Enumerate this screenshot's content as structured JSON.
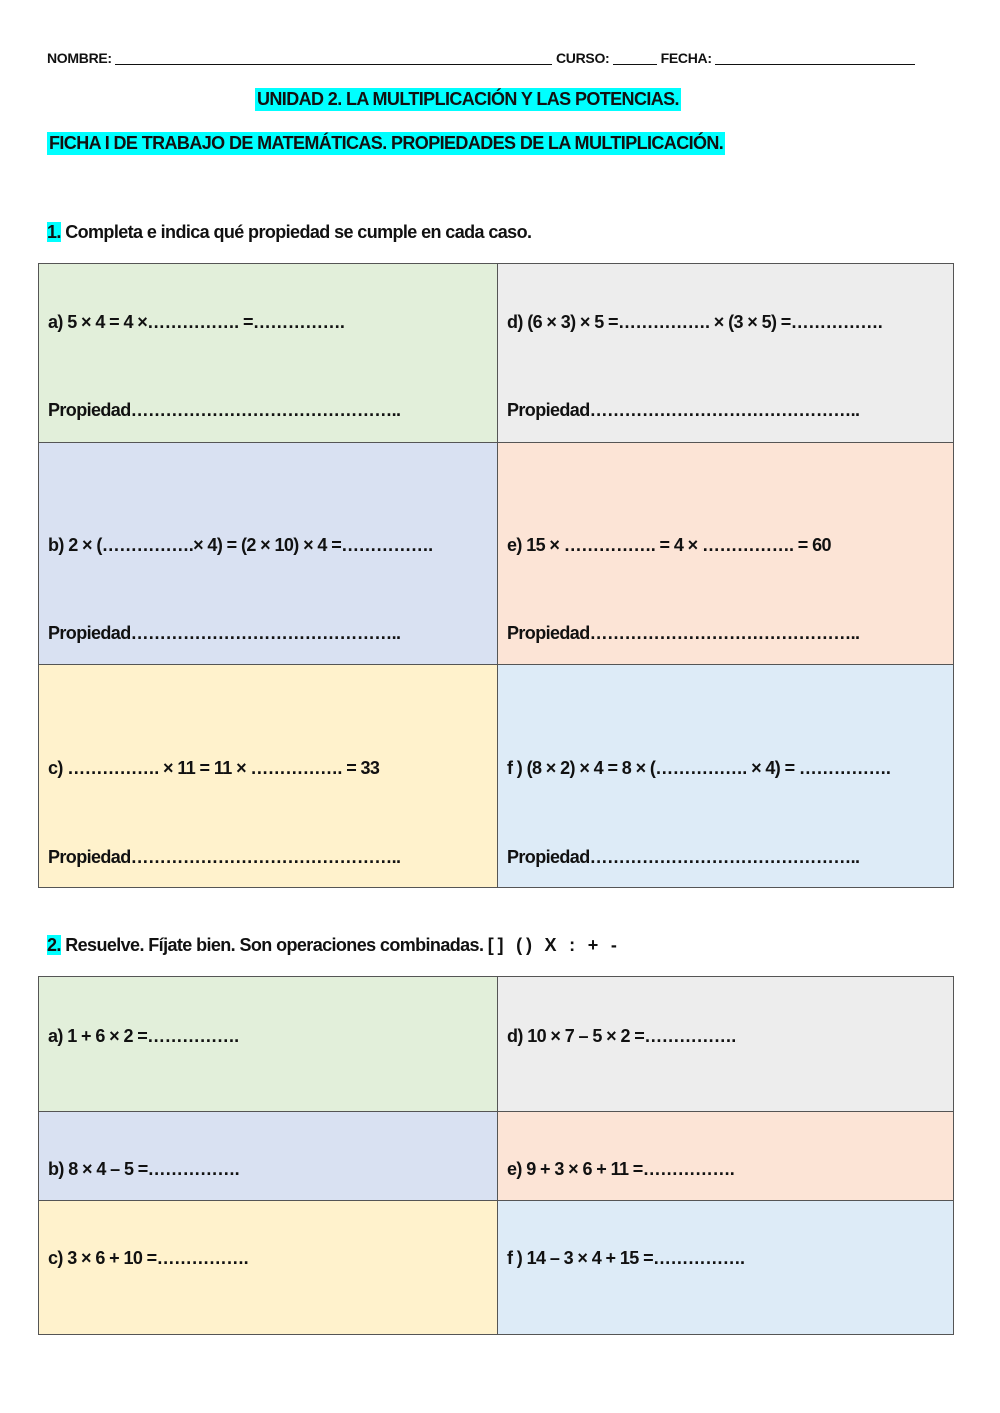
{
  "header": {
    "nombre_label": "NOMBRE:",
    "curso_label": "CURSO:",
    "fecha_label": "FECHA:",
    "unit_title": "UNIDAD 2. LA MULTIPLICACIÓN Y LAS POTENCIAS.",
    "sheet_title": "FICHA I DE TRABAJO DE MATEMÁTICAS.  PROPIEDADES DE LA MULTIPLICACIÓN."
  },
  "colors": {
    "highlight": "#00ffff",
    "green": "#e2efda",
    "gray": "#ededed",
    "blue": "#d9e1f2",
    "peach": "#fce4d6",
    "yellow": "#fff2cc",
    "lightblue": "#ddebf7"
  },
  "exercise1": {
    "number": "1.",
    "instruction": "Completa e indica qué propiedad se cumple en cada caso.",
    "cells": [
      {
        "eq": "a) 5 × 4 = 4 ×……………. =…………….",
        "prop": "Propiedad……………………………………….."
      },
      {
        "eq": "d) (6 × 3) × 5 =……………. × (3 × 5) =…………….",
        "prop": "Propiedad……………………………………….."
      },
      {
        "eq": "b) 2 × (…………….× 4) = (2 × 10) × 4 =…………….",
        "prop": "Propiedad……………………………………….."
      },
      {
        "eq": "e) 15 × ……………. = 4 × ……………. = 60",
        "prop": "Propiedad……………………………………….."
      },
      {
        "eq": "c) ……………. × 11 = 11 × ……………. = 33",
        "prop": "Propiedad……………………………………….."
      },
      {
        "eq": "f ) (8 × 2) × 4 = 8 × (……………. × 4) = …………….",
        "prop": "Propiedad……………………………………….."
      }
    ]
  },
  "exercise2": {
    "number": "2.",
    "instruction": "Resuelve. Fíjate bien. Son operaciones combinadas. [ ]   ( )   X   :   +   -",
    "cells": [
      {
        "eq": "a) 1 + 6 × 2 =……………."
      },
      {
        "eq": "d) 10 × 7 – 5 × 2 =……………."
      },
      {
        "eq": "b) 8 × 4 – 5 =……………."
      },
      {
        "eq": "e) 9 + 3 × 6 + 11 =……………."
      },
      {
        "eq": "c) 3 × 6 + 10 =……………."
      },
      {
        "eq": "f ) 14 – 3 × 4 + 15 =……………."
      }
    ]
  }
}
